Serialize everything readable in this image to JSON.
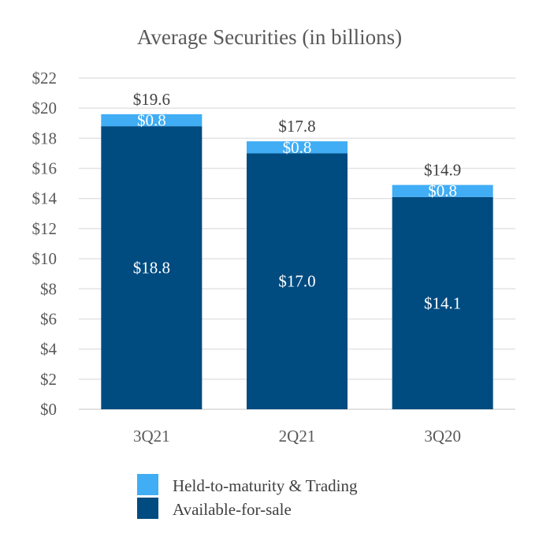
{
  "chart_data": {
    "type": "bar",
    "stacked": true,
    "title": "Average Securities (in billions)",
    "categories": [
      "3Q21",
      "2Q21",
      "3Q20"
    ],
    "series": [
      {
        "name": "Available-for-sale",
        "values": [
          18.8,
          17.0,
          14.1
        ],
        "labels": [
          "$18.8",
          "$17.0",
          "$14.1"
        ],
        "color": "#004b80"
      },
      {
        "name": "Held-to-maturity & Trading",
        "values": [
          0.8,
          0.8,
          0.8
        ],
        "labels": [
          "$0.8",
          "$0.8",
          "$0.8"
        ],
        "color": "#40adf5"
      }
    ],
    "totals": [
      19.6,
      17.8,
      14.9
    ],
    "total_labels": [
      "$19.6",
      "$17.8",
      "$14.9"
    ],
    "ylim": [
      0,
      22
    ],
    "yticks": [
      0,
      2,
      4,
      6,
      8,
      10,
      12,
      14,
      16,
      18,
      20,
      22
    ],
    "ytick_labels": [
      "$0",
      "$2",
      "$4",
      "$6",
      "$8",
      "$10",
      "$12",
      "$14",
      "$16",
      "$18",
      "$20",
      "$22"
    ],
    "grid": true,
    "legend_position": "bottom",
    "legend_order": [
      "Held-to-maturity & Trading",
      "Available-for-sale"
    ]
  }
}
